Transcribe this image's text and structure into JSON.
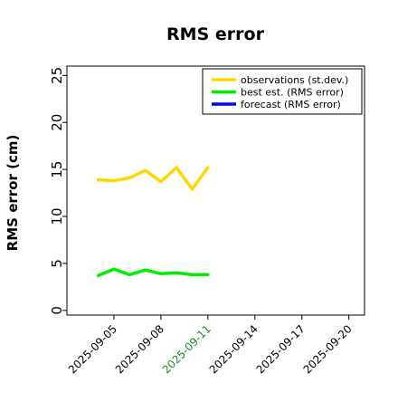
{
  "chart_data": {
    "type": "line",
    "title": "RMS error",
    "ylabel": "RMS error (cm)",
    "xlabel": "",
    "ylim": [
      -0.5,
      26
    ],
    "yticks": [
      0,
      5,
      10,
      15,
      20,
      25
    ],
    "x_range": [
      "2025-09-02",
      "2025-09-21"
    ],
    "xticks": [
      "2025-09-05",
      "2025-09-08",
      "2025-09-11",
      "2025-09-14",
      "2025-09-17",
      "2025-09-20"
    ],
    "highlight_tick": "2025-09-11",
    "highlight_color": "#228b22",
    "grid": false,
    "legend_position": "top-right",
    "series": [
      {
        "name": "observations (st.dev.)",
        "color": "#ffd700",
        "x": [
          "2025-09-04",
          "2025-09-05",
          "2025-09-06",
          "2025-09-07",
          "2025-09-08",
          "2025-09-09",
          "2025-09-10",
          "2025-09-11"
        ],
        "values": [
          13.9,
          13.8,
          14.1,
          14.9,
          13.7,
          15.2,
          12.9,
          15.2
        ]
      },
      {
        "name": "best est. (RMS error)",
        "color": "#00ee00",
        "x": [
          "2025-09-04",
          "2025-09-05",
          "2025-09-06",
          "2025-09-07",
          "2025-09-08",
          "2025-09-09",
          "2025-09-10",
          "2025-09-11"
        ],
        "values": [
          3.7,
          4.4,
          3.8,
          4.3,
          3.9,
          4.0,
          3.8,
          3.8
        ]
      },
      {
        "name": "forecast (RMS error)",
        "color": "#0000ff",
        "x": [],
        "values": []
      }
    ]
  }
}
